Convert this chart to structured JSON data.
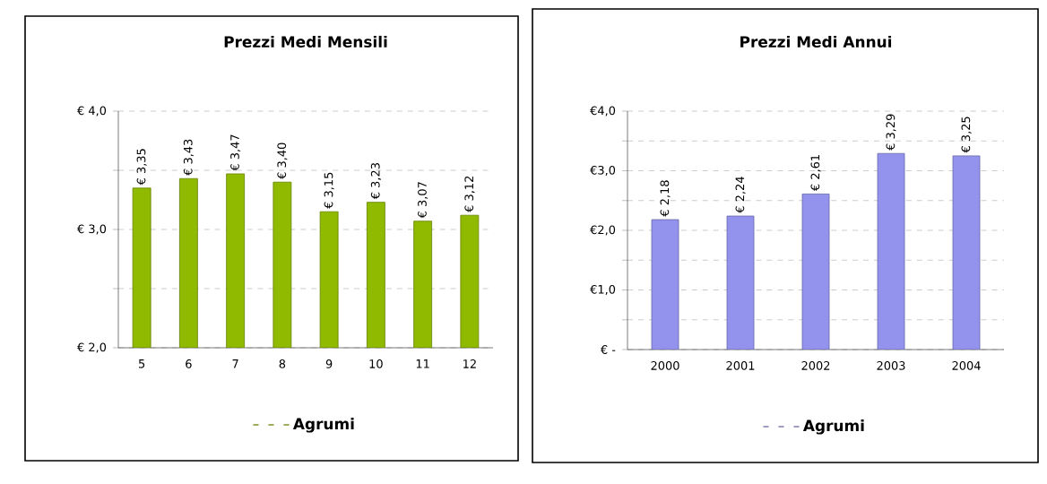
{
  "chart_data": [
    {
      "type": "bar",
      "title": "Prezzi Medi Mensili",
      "categories": [
        "5",
        "6",
        "7",
        "8",
        "9",
        "10",
        "11",
        "12"
      ],
      "series": [
        {
          "name": "Agrumi",
          "color": "#8fba00",
          "values": [
            3.35,
            3.43,
            3.47,
            3.4,
            3.15,
            3.23,
            3.07,
            3.12
          ],
          "value_labels": [
            "€ 3,35",
            "€ 3,43",
            "€ 3,47",
            "€ 3,40",
            "€ 3,15",
            "€ 3,23",
            "€ 3,07",
            "€ 3,12"
          ]
        }
      ],
      "ylim": [
        2,
        4
      ],
      "yticks": [
        {
          "value": 2,
          "label": "€ 2,0"
        },
        {
          "value": 2.5,
          "label": null
        },
        {
          "value": 3,
          "label": "€ 3,0"
        },
        {
          "value": 3.5,
          "label": null
        },
        {
          "value": 4,
          "label": "€ 4,0"
        }
      ],
      "grid": "y",
      "legend": "bottom"
    },
    {
      "type": "bar",
      "title": "Prezzi Medi Annui",
      "categories": [
        "2000",
        "2001",
        "2002",
        "2003",
        "2004"
      ],
      "series": [
        {
          "name": "Agrumi",
          "color": "#9393ee",
          "values": [
            2.18,
            2.24,
            2.61,
            3.29,
            3.25
          ],
          "value_labels": [
            "€ 2,18",
            "€ 2,24",
            "€ 2,61",
            "€ 3,29",
            "€ 3,25"
          ]
        }
      ],
      "ylim": [
        0,
        4
      ],
      "yticks": [
        {
          "value": 0,
          "label": "€ -"
        },
        {
          "value": 0.5,
          "label": null
        },
        {
          "value": 1,
          "label": "€1,0"
        },
        {
          "value": 1.5,
          "label": null
        },
        {
          "value": 2,
          "label": "€2,0"
        },
        {
          "value": 2.5,
          "label": null
        },
        {
          "value": 3,
          "label": "€3,0"
        },
        {
          "value": 3.5,
          "label": null
        },
        {
          "value": 4,
          "label": "€4,0"
        }
      ],
      "grid": "y",
      "legend": "bottom"
    }
  ]
}
